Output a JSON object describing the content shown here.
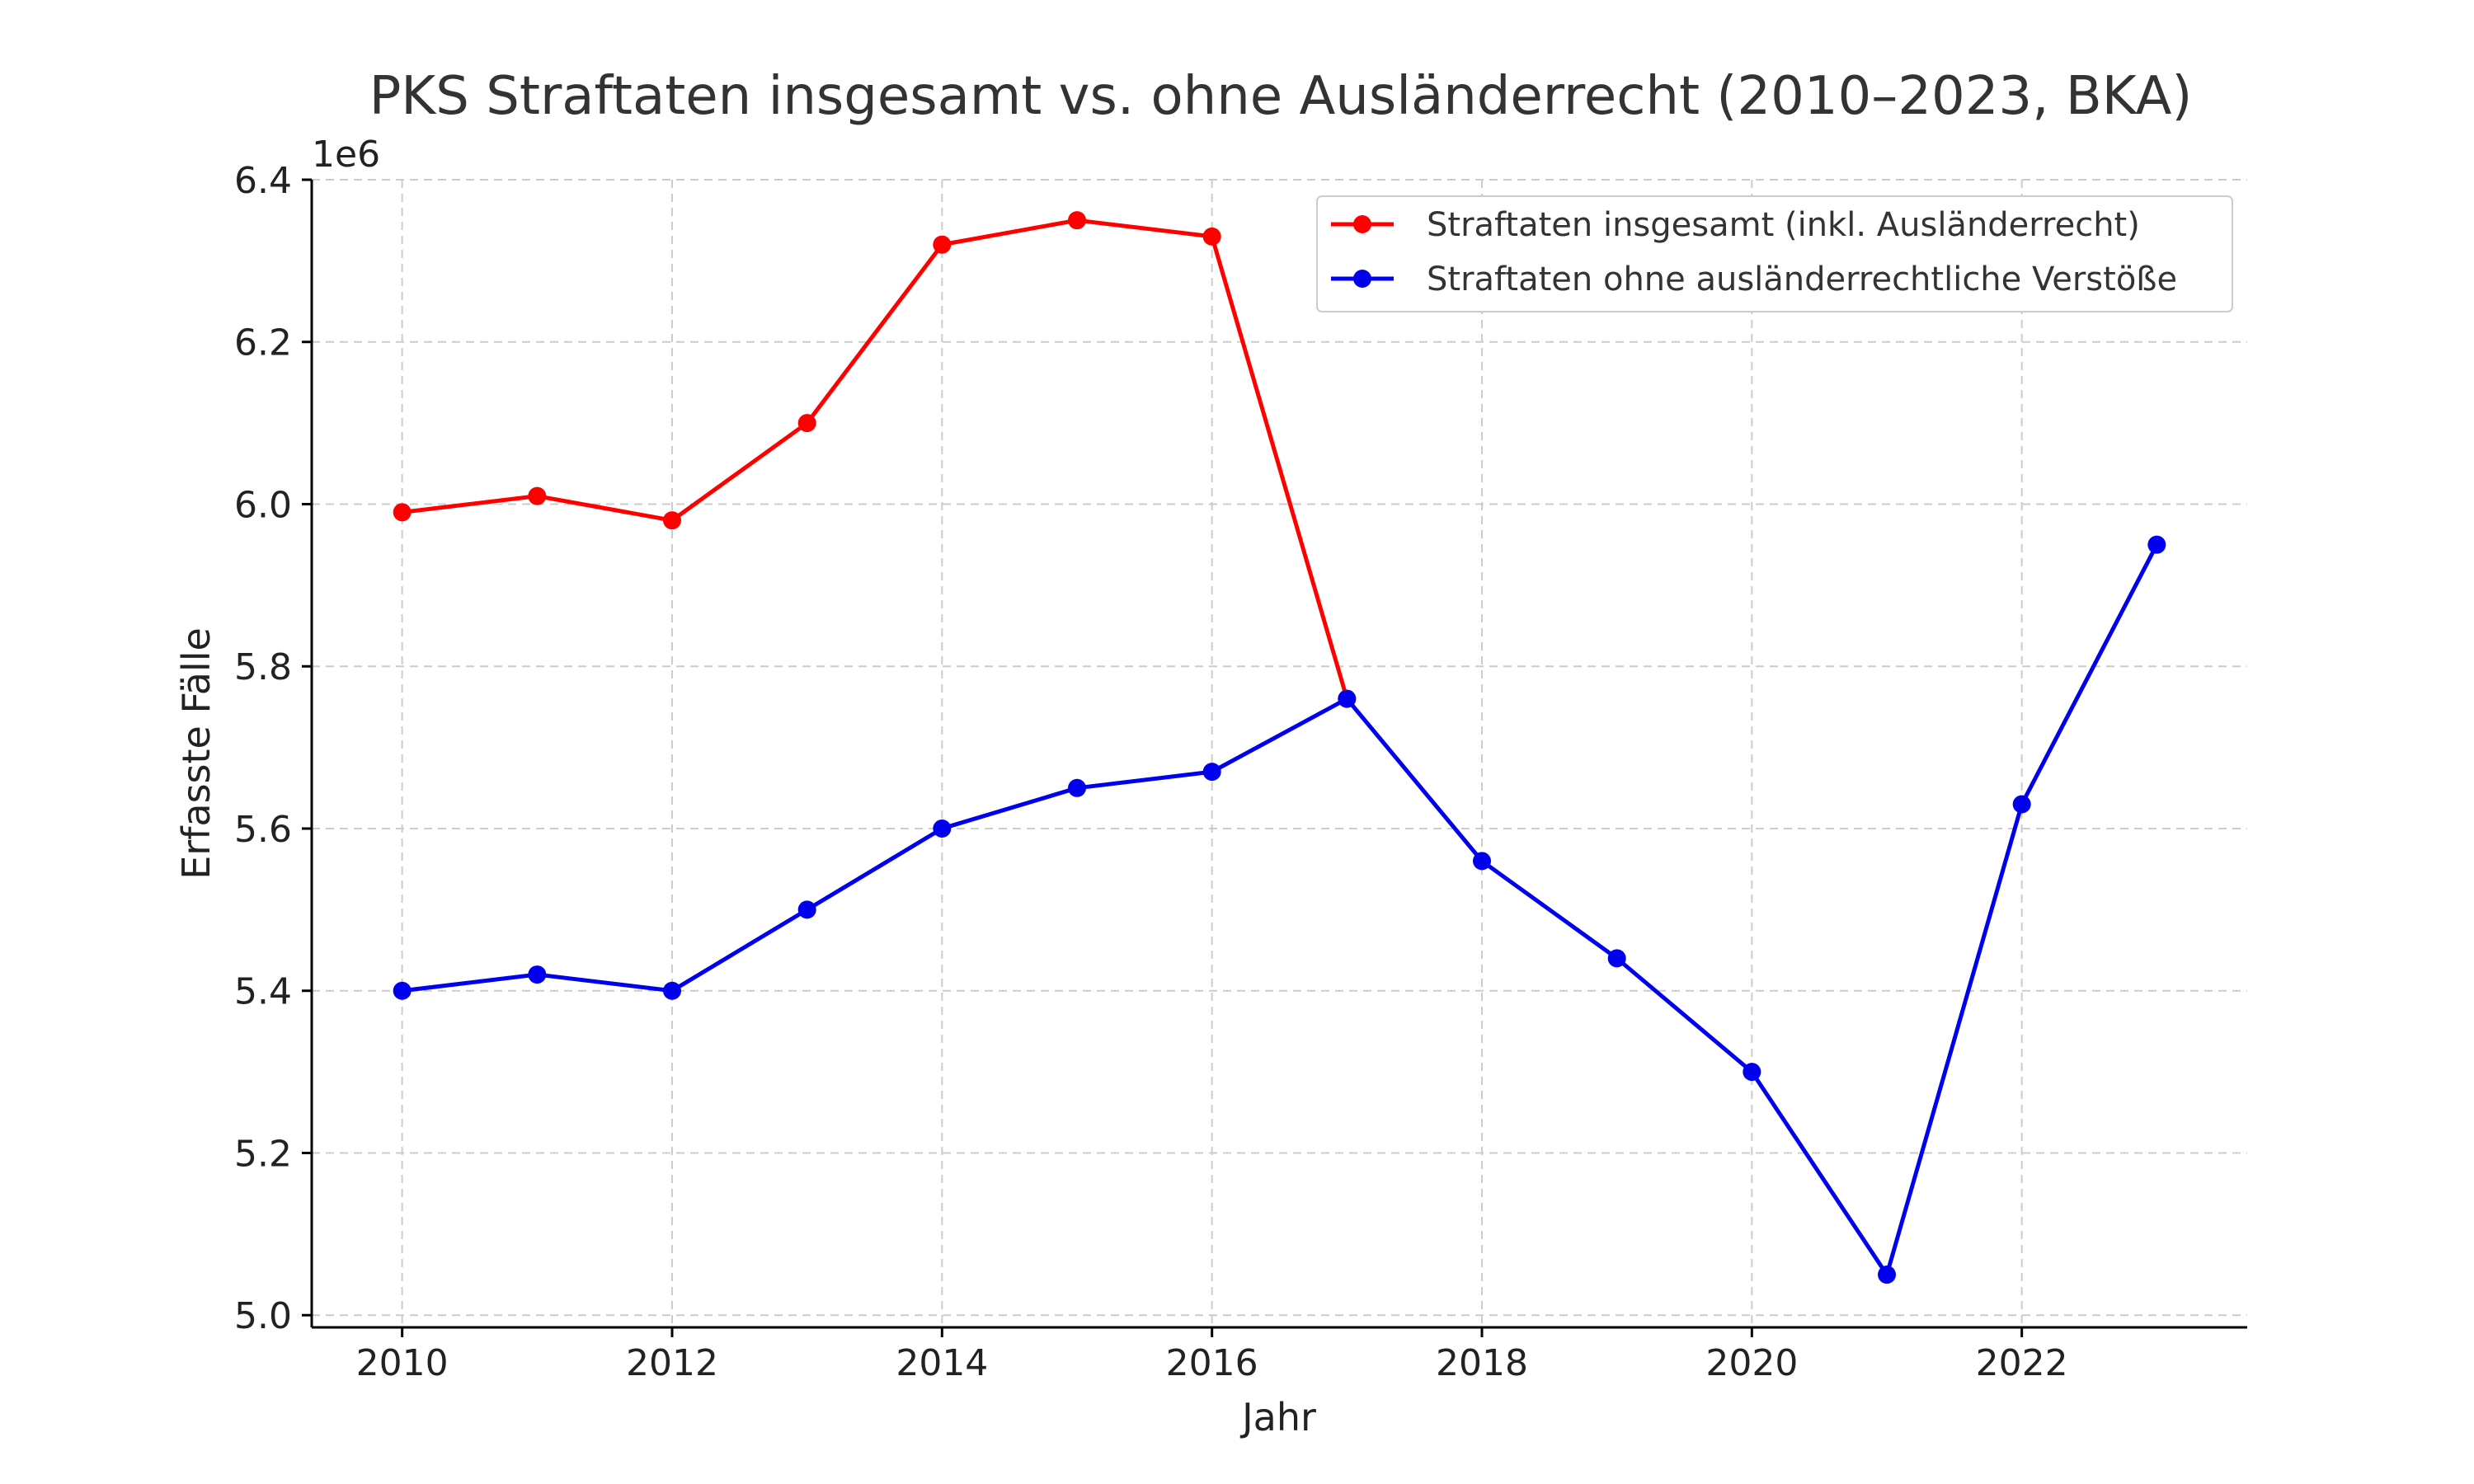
{
  "chart_data": {
    "type": "line",
    "title": "PKS Straftaten insgesamt vs. ohne Ausländerrecht (2010–2023, BKA)",
    "xlabel": "Jahr",
    "ylabel": "Erfasste Fälle",
    "y_offset_label": "1e6",
    "xlim": [
      2009.33,
      2023.67
    ],
    "ylim": [
      4.985,
      6.4
    ],
    "x_ticks": [
      2010,
      2012,
      2014,
      2016,
      2018,
      2020,
      2022
    ],
    "y_ticks": [
      5.0,
      5.2,
      5.4,
      5.6,
      5.8,
      6.0,
      6.2,
      6.4
    ],
    "y_tick_labels": [
      "5.0",
      "5.2",
      "5.4",
      "5.6",
      "5.8",
      "6.0",
      "6.2",
      "6.4"
    ],
    "grid": true,
    "legend_position": "top-right",
    "series": [
      {
        "name": "Straftaten insgesamt (inkl. Ausländerrecht)",
        "color": "#ff0000",
        "x": [
          2010,
          2011,
          2012,
          2013,
          2014,
          2015,
          2016,
          2017
        ],
        "values": [
          5.99,
          6.01,
          5.98,
          6.1,
          6.32,
          6.35,
          6.33,
          5.76
        ]
      },
      {
        "name": "Straftaten ohne ausländerrechtliche Verstöße",
        "color": "#0000ee",
        "x": [
          2010,
          2011,
          2012,
          2013,
          2014,
          2015,
          2016,
          2017,
          2018,
          2019,
          2020,
          2021,
          2022,
          2023
        ],
        "values": [
          5.4,
          5.42,
          5.4,
          5.5,
          5.6,
          5.65,
          5.67,
          5.76,
          5.56,
          5.44,
          5.3,
          5.05,
          5.63,
          5.95
        ]
      }
    ]
  }
}
